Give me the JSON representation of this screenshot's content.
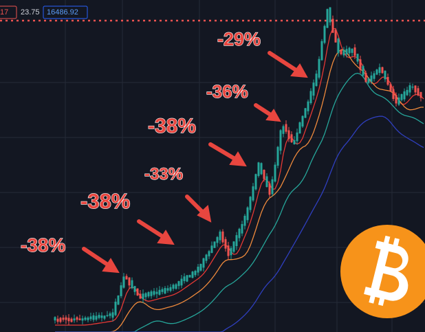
{
  "toolbar": {
    "values": [
      "17",
      "23.75",
      "16486.92"
    ]
  },
  "annotations": [
    "-29%",
    "-36%",
    "-38%",
    "-33%",
    "-38%",
    "-38%"
  ]
}
